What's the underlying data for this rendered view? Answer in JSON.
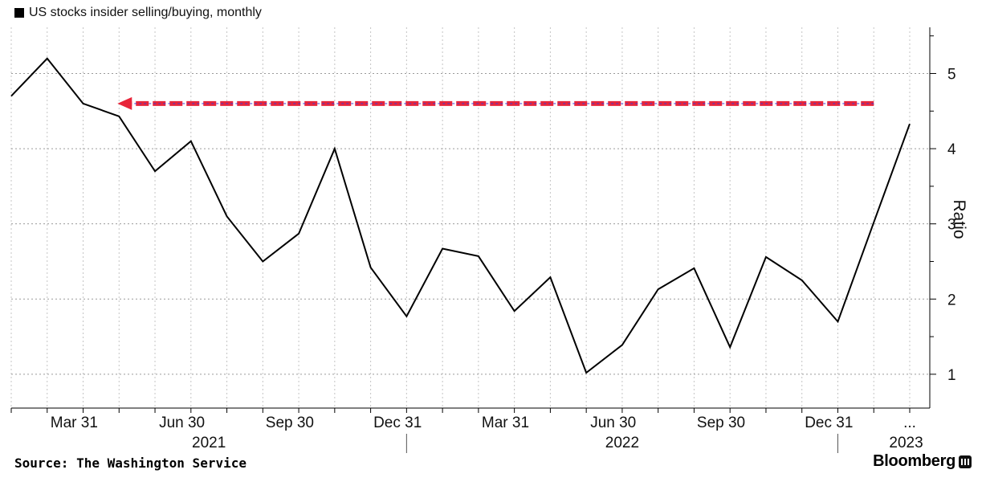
{
  "header": {
    "title": "US stocks insider selling/buying, monthly",
    "legend_color": "#000000"
  },
  "footer": {
    "source": "Source: The Washington Service",
    "brand": "Bloomberg"
  },
  "colors": {
    "line": "#000000",
    "arrow": "#e8253a",
    "arrow_inner": "#3b3bd9",
    "grid": "#9a9a9a"
  },
  "chart_data": {
    "type": "line",
    "title": "US stocks insider selling/buying, monthly",
    "ylabel": "Ratio",
    "xlabel": "",
    "ylim": [
      0.55,
      5.55
    ],
    "yticks": [
      1,
      2,
      3,
      4,
      5
    ],
    "x_month_labels": [
      "Mar 31",
      "Jun 30",
      "Sep 30",
      "Dec 31",
      "Mar 31",
      "Jun 30",
      "Sep 30",
      "Dec 31",
      "..."
    ],
    "year_labels": [
      "2021",
      "2022",
      "2023"
    ],
    "grid": true,
    "series": [
      {
        "x": [
          "2021-01",
          "2021-02",
          "2021-03",
          "2021-04",
          "2021-05",
          "2021-06",
          "2021-07",
          "2021-08",
          "2021-09",
          "2021-10",
          "2021-11",
          "2021-12",
          "2022-01",
          "2022-02",
          "2022-03",
          "2022-04",
          "2022-05",
          "2022-06",
          "2022-07",
          "2022-08",
          "2022-09",
          "2022-10",
          "2022-11",
          "2022-12",
          "2023-01",
          "2023-02"
        ],
        "values": [
          4.7,
          5.2,
          4.6,
          4.43,
          3.7,
          4.1,
          3.1,
          2.5,
          2.87,
          4.0,
          2.42,
          1.77,
          2.67,
          2.57,
          1.84,
          2.29,
          1.02,
          1.39,
          2.13,
          2.41,
          1.36,
          2.56,
          2.25,
          1.7,
          3.02,
          4.33
        ]
      }
    ],
    "annotations": [
      {
        "type": "dashed-arrow",
        "y": 4.6,
        "from_x": "2023-01",
        "to_x": "2021-04",
        "direction": "left"
      }
    ]
  }
}
